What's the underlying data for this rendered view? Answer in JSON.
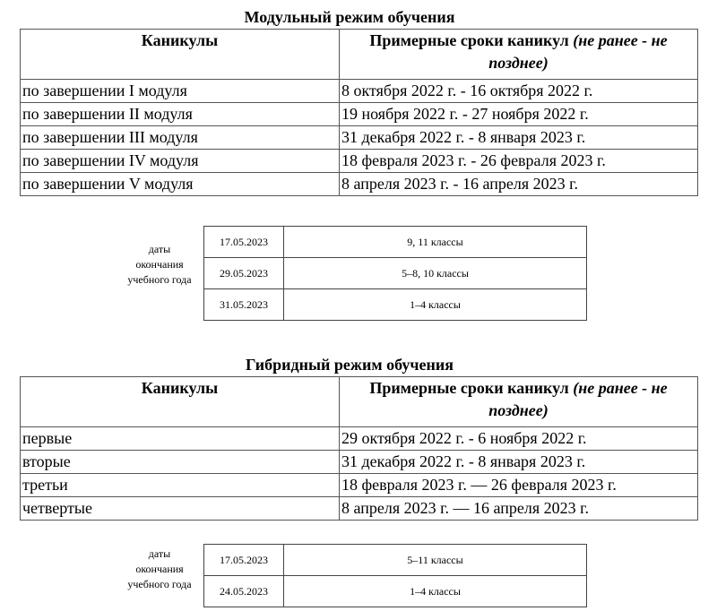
{
  "modular": {
    "title": "Модульный режим обучения",
    "col1": "Каникулы",
    "col2": "Примерные сроки каникул",
    "col2_note": "(не ранее - не позднее)",
    "rows": [
      {
        "name": "по завершении I модуля",
        "dates": "8 октября 2022 г. - 16 октября 2022 г."
      },
      {
        "name": "по завершении II модуля",
        "dates": "19 ноября 2022 г. - 27 ноября 2022 г."
      },
      {
        "name": "по завершении III модуля",
        "dates": "31 декабря 2022 г. - 8 января 2023 г."
      },
      {
        "name": "по завершении IV модуля",
        "dates": "18 февраля 2023 г. - 26 февраля 2023 г."
      },
      {
        "name": "по завершении V модуля",
        "dates": "8 апреля 2023 г. - 16 апреля 2023 г."
      }
    ],
    "end_label": "даты окончания учебного года",
    "end_rows": [
      {
        "date": "17.05.2023",
        "classes": "9, 11 классы"
      },
      {
        "date": "29.05.2023",
        "classes": "5–8, 10 классы"
      },
      {
        "date": "31.05.2023",
        "classes": "1–4 классы"
      }
    ]
  },
  "hybrid": {
    "title": "Гибридный режим обучения",
    "col1": "Каникулы",
    "col2": "Примерные сроки каникул",
    "col2_note": "(не ранее - не позднее)",
    "rows": [
      {
        "name": "первые",
        "dates": "29 октября 2022 г. - 6 ноября 2022 г."
      },
      {
        "name": "вторые",
        "dates": "31 декабря 2022 г. - 8 января 2023 г."
      },
      {
        "name": "третьи",
        "dates": "18 февраля 2023 г. — 26 февраля 2023 г."
      },
      {
        "name": "четвертые",
        "dates": "8 апреля 2023 г. — 16 апреля 2023 г."
      }
    ],
    "end_label": "даты окончания учебного года",
    "end_rows": [
      {
        "date": "17.05.2023",
        "classes": "5–11 классы"
      },
      {
        "date": "24.05.2023",
        "classes": "1–4 классы"
      }
    ]
  }
}
